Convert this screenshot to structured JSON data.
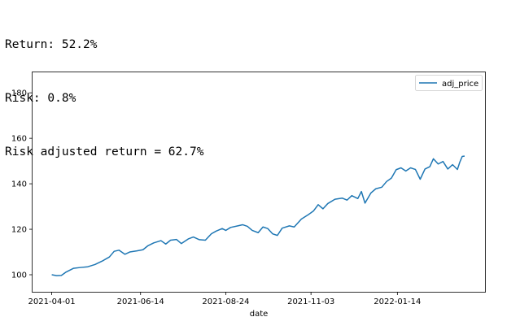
{
  "output": {
    "line1": "Return: 52.2%",
    "line2": "Risk: 0.8%",
    "line3": "Risk adjusted return = 62.7%"
  },
  "chart_data": {
    "type": "line",
    "title": "",
    "xlabel": "date",
    "ylabel": "",
    "x_ticks": [
      "2021-04-01",
      "2021-06-14",
      "2021-08-24",
      "2021-11-03",
      "2022-01-14"
    ],
    "y_ticks": [
      100,
      120,
      140,
      160,
      180
    ],
    "xlim": [
      "2021-03-16",
      "2022-03-28"
    ],
    "ylim": [
      92.5,
      189
    ],
    "grid": false,
    "legend": {
      "placement": "top-right",
      "entries": [
        "adj_price"
      ]
    },
    "series": [
      {
        "name": "adj_price",
        "color": "#1f77b4",
        "points": [
          [
            "2021-04-01",
            100.0
          ],
          [
            "2021-04-05",
            99.6
          ],
          [
            "2021-04-09",
            99.7
          ],
          [
            "2021-04-13",
            101.2
          ],
          [
            "2021-04-19",
            102.8
          ],
          [
            "2021-04-25",
            103.2
          ],
          [
            "2021-05-01",
            103.5
          ],
          [
            "2021-05-07",
            104.5
          ],
          [
            "2021-05-13",
            106.0
          ],
          [
            "2021-05-19",
            107.8
          ],
          [
            "2021-05-23",
            110.3
          ],
          [
            "2021-05-27",
            110.8
          ],
          [
            "2021-06-01",
            109.0
          ],
          [
            "2021-06-05",
            110.0
          ],
          [
            "2021-06-11",
            110.5
          ],
          [
            "2021-06-16",
            111.0
          ],
          [
            "2021-06-20",
            112.7
          ],
          [
            "2021-06-25",
            114.0
          ],
          [
            "2021-07-01",
            115.0
          ],
          [
            "2021-07-05",
            113.5
          ],
          [
            "2021-07-09",
            115.2
          ],
          [
            "2021-07-14",
            115.5
          ],
          [
            "2021-07-18",
            113.7
          ],
          [
            "2021-07-24",
            115.8
          ],
          [
            "2021-07-28",
            116.6
          ],
          [
            "2021-08-02",
            115.4
          ],
          [
            "2021-08-07",
            115.2
          ],
          [
            "2021-08-12",
            118.0
          ],
          [
            "2021-08-16",
            119.2
          ],
          [
            "2021-08-21",
            120.3
          ],
          [
            "2021-08-24",
            119.5
          ],
          [
            "2021-08-28",
            120.8
          ],
          [
            "2021-09-03",
            121.5
          ],
          [
            "2021-09-07",
            122.0
          ],
          [
            "2021-09-11",
            121.3
          ],
          [
            "2021-09-15",
            119.5
          ],
          [
            "2021-09-20",
            118.5
          ],
          [
            "2021-09-24",
            121.0
          ],
          [
            "2021-09-28",
            120.3
          ],
          [
            "2021-10-02",
            118.0
          ],
          [
            "2021-10-06",
            117.3
          ],
          [
            "2021-10-10",
            120.5
          ],
          [
            "2021-10-16",
            121.5
          ],
          [
            "2021-10-20",
            121.0
          ],
          [
            "2021-10-26",
            124.5
          ],
          [
            "2021-11-01",
            126.5
          ],
          [
            "2021-11-05",
            128.0
          ],
          [
            "2021-11-09",
            130.8
          ],
          [
            "2021-11-13",
            129.0
          ],
          [
            "2021-11-17",
            131.3
          ],
          [
            "2021-11-23",
            133.2
          ],
          [
            "2021-11-29",
            133.7
          ],
          [
            "2021-12-03",
            132.8
          ],
          [
            "2021-12-07",
            134.8
          ],
          [
            "2021-12-12",
            133.5
          ],
          [
            "2021-12-15",
            136.6
          ],
          [
            "2021-12-18",
            131.5
          ],
          [
            "2021-12-23",
            136.0
          ],
          [
            "2021-12-27",
            137.8
          ],
          [
            "2022-01-01",
            138.5
          ],
          [
            "2022-01-05",
            141.0
          ],
          [
            "2022-01-09",
            142.5
          ],
          [
            "2022-01-13",
            146.2
          ],
          [
            "2022-01-17",
            147.0
          ],
          [
            "2022-01-21",
            145.6
          ],
          [
            "2022-01-25",
            147.0
          ],
          [
            "2022-01-29",
            146.3
          ],
          [
            "2022-02-02",
            142.0
          ],
          [
            "2022-02-06",
            146.5
          ],
          [
            "2022-02-10",
            147.5
          ],
          [
            "2022-02-13",
            151.0
          ],
          [
            "2022-02-17",
            148.7
          ],
          [
            "2022-02-21",
            149.8
          ],
          [
            "2022-02-25",
            146.5
          ],
          [
            "2022-03-01",
            148.4
          ],
          [
            "2022-03-05",
            146.3
          ],
          [
            "2022-03-07",
            149.5
          ],
          [
            "2022-03-09",
            152.0
          ],
          [
            "2022-03-11",
            152.2
          ]
        ]
      }
    ]
  }
}
